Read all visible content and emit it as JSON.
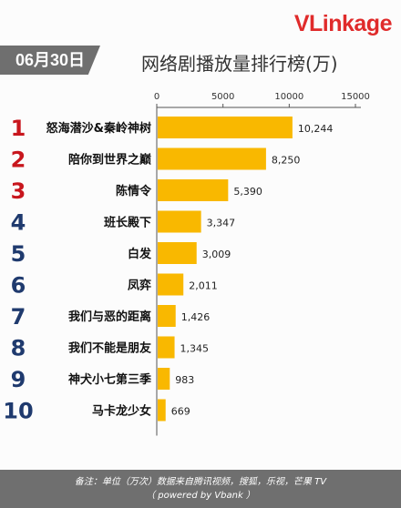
{
  "logo": {
    "v": "V",
    "rest": "Linkage"
  },
  "date": "06月30日",
  "title": "网络剧播放量排行榜(万)",
  "footer": {
    "line1": "备注：单位（万次）数据来自腾讯视频，搜狐，乐视，芒果 TV",
    "line2": "（ powered by Vbank ）"
  },
  "colors": {
    "bar": "#f9b800",
    "rank_red": "#c8161d",
    "rank_blue": "#1f3a6e",
    "axis": "#555555"
  },
  "chart_data": {
    "type": "bar",
    "orientation": "horizontal",
    "title": "网络剧播放量排行榜(万)",
    "ranks": [
      "1",
      "2",
      "3",
      "4",
      "5",
      "6",
      "7",
      "8",
      "9",
      "10"
    ],
    "categories": [
      "怒海潜沙&秦岭神树",
      "陪你到世界之巅",
      "陈情令",
      "班长殿下",
      "白发",
      "凤弈",
      "我们与恶的距离",
      "我们不能是朋友",
      "神犬小七第三季",
      "马卡龙少女"
    ],
    "values": [
      10244,
      8250,
      5390,
      3347,
      3009,
      2011,
      1426,
      1345,
      983,
      669
    ],
    "value_labels": [
      "10,244",
      "8,250",
      "5,390",
      "3,347",
      "3,009",
      "2,011",
      "1,426",
      "1,345",
      "983",
      "669"
    ],
    "xlim": [
      0,
      15000
    ],
    "ticks": [
      0,
      5000,
      10000,
      15000
    ],
    "tick_labels": [
      "0",
      "5000",
      "10000",
      "15000"
    ],
    "axis_position": "top",
    "grid": false
  }
}
